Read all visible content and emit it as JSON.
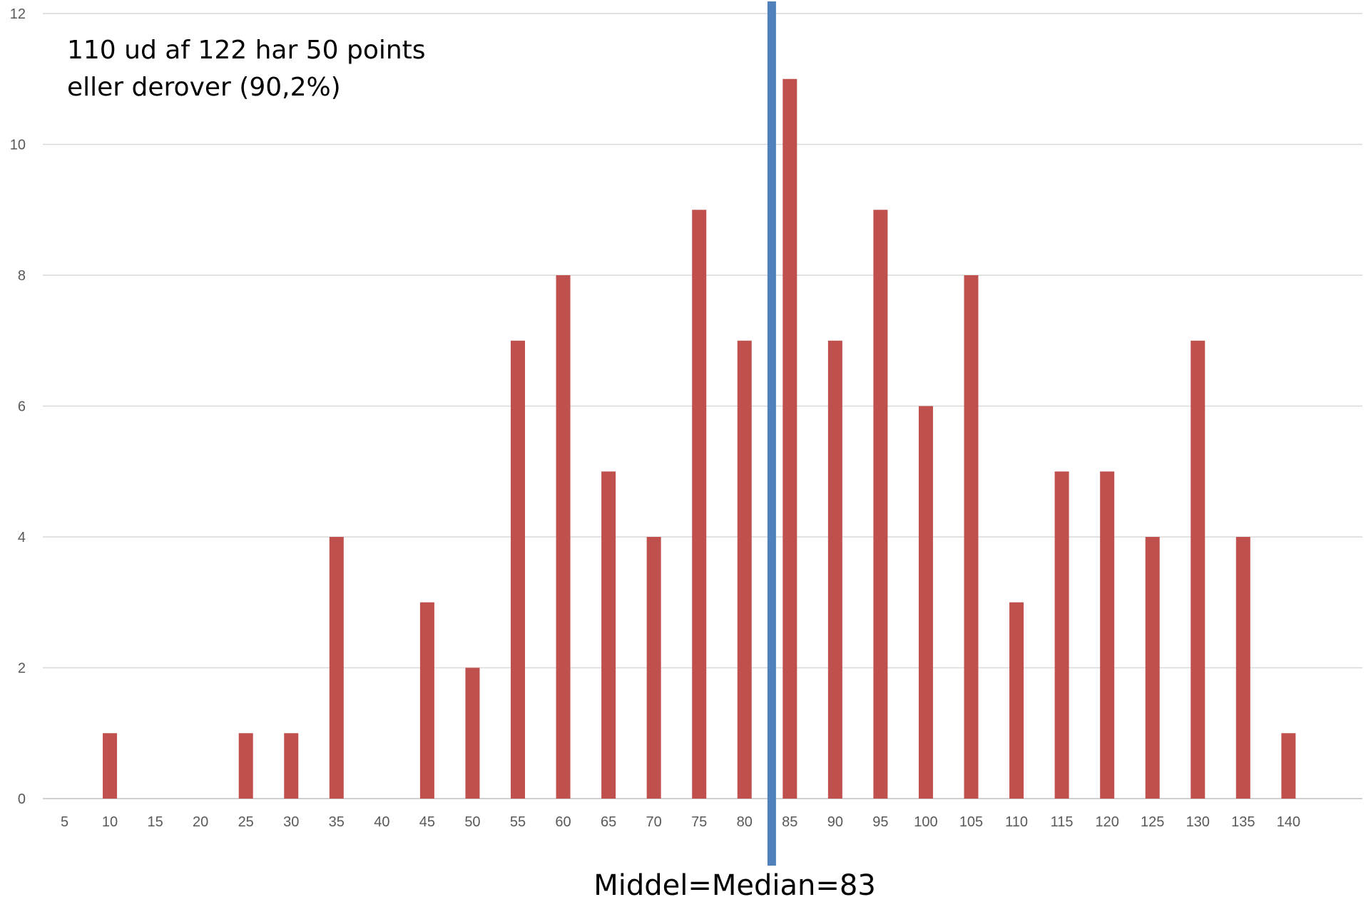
{
  "chart_data": {
    "type": "bar",
    "categories": [
      "5",
      "10",
      "15",
      "20",
      "25",
      "30",
      "35",
      "40",
      "45",
      "50",
      "55",
      "60",
      "65",
      "70",
      "75",
      "80",
      "85",
      "90",
      "95",
      "100",
      "105",
      "110",
      "115",
      "120",
      "125",
      "130",
      "135",
      "140"
    ],
    "values": [
      0,
      1,
      0,
      0,
      1,
      1,
      4,
      0,
      3,
      2,
      7,
      8,
      5,
      4,
      9,
      7,
      11,
      7,
      9,
      6,
      8,
      3,
      5,
      5,
      4,
      7,
      4,
      1
    ],
    "ylim": [
      0,
      12
    ],
    "yticks": [
      0,
      2,
      4,
      6,
      8,
      10,
      12
    ],
    "grid": true,
    "legend": "none",
    "bar_color": "#C0504D",
    "marker_line": {
      "x": 83,
      "label": "Middel=Median=83",
      "color": "#4F81BD"
    },
    "annotation": {
      "lines": [
        "110 ud af 122 har 50 points",
        "eller derover  (90,2%)"
      ]
    }
  }
}
